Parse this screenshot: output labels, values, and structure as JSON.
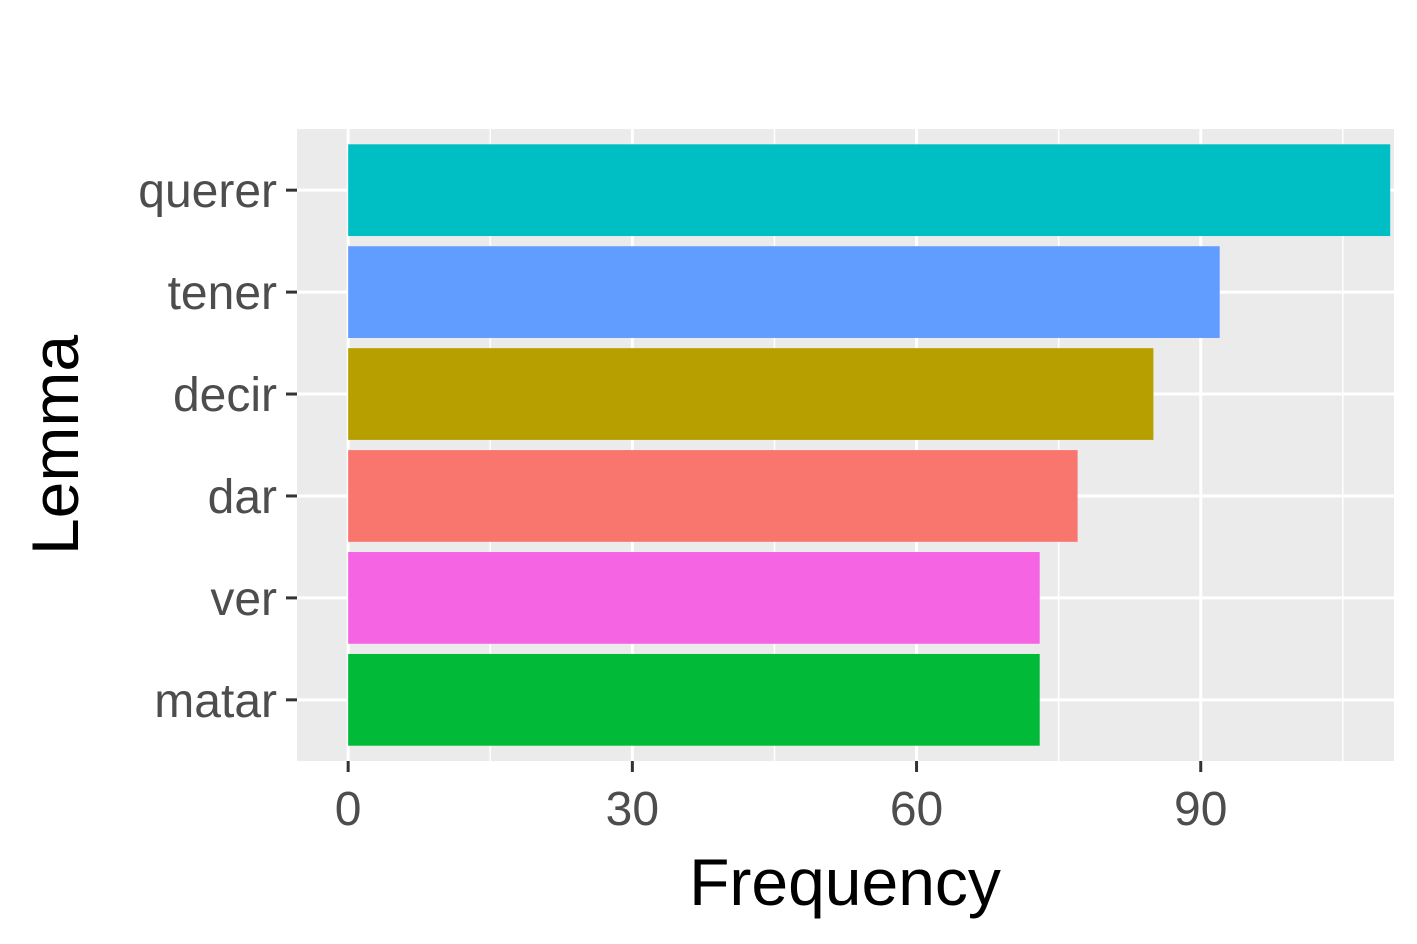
{
  "chart_data": {
    "type": "bar",
    "orientation": "horizontal",
    "title": "",
    "xlabel": "Frequency",
    "ylabel": "Lemma",
    "categories": [
      "querer",
      "tener",
      "decir",
      "dar",
      "ver",
      "matar"
    ],
    "values": [
      110,
      92,
      85,
      77,
      73,
      73
    ],
    "colors": [
      "#00BFC4",
      "#619CFF",
      "#B79F00",
      "#F8766D",
      "#F564E3",
      "#00BA38"
    ],
    "xlim": [
      -5.4,
      110.4
    ],
    "xticks": [
      0,
      30,
      60,
      90
    ],
    "x_minor_ticks": [
      15,
      45,
      75,
      105
    ],
    "grid": true,
    "legend": "none",
    "panel_background": "#EBEBEB"
  }
}
